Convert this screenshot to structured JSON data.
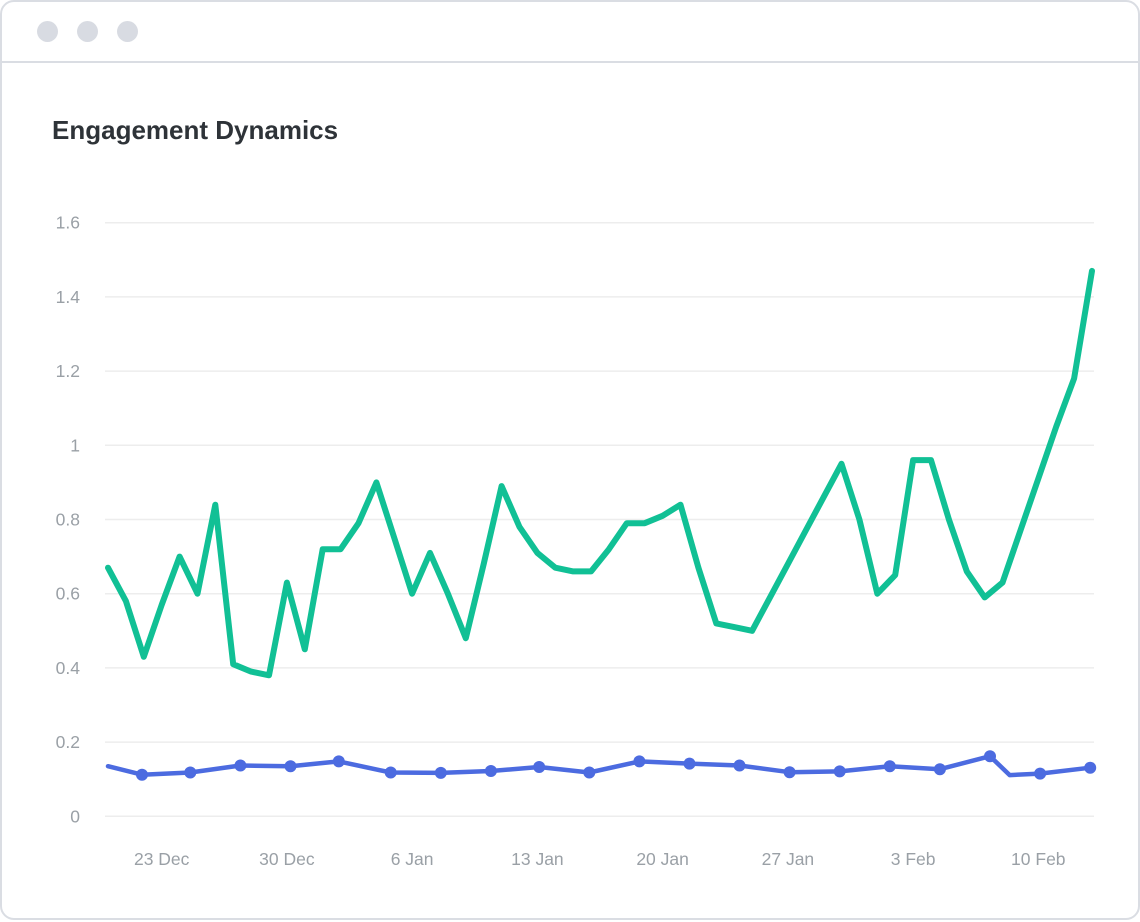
{
  "window": {
    "title": "Engagement Dynamics",
    "controls": [
      "window-dot",
      "window-dot",
      "window-dot"
    ]
  },
  "chart_data": {
    "type": "line",
    "title": "Engagement Dynamics",
    "grid": true,
    "x_unit": "day offset from first point (20 Dec), 1 unit = 1 day",
    "x_range_days": [
      0,
      55
    ],
    "x_ticks": [
      {
        "day": 3,
        "label": "23 Dec"
      },
      {
        "day": 10,
        "label": "30 Dec"
      },
      {
        "day": 17,
        "label": "6 Jan"
      },
      {
        "day": 24,
        "label": "13 Jan"
      },
      {
        "day": 31,
        "label": "20 Jan"
      },
      {
        "day": 38,
        "label": "27 Jan"
      },
      {
        "day": 45,
        "label": "3 Feb"
      },
      {
        "day": 52,
        "label": "10 Feb"
      }
    ],
    "y_range": [
      0,
      1.6
    ],
    "y_ticks": [
      {
        "value": 0,
        "label": "0"
      },
      {
        "value": 0.2,
        "label": "0.2"
      },
      {
        "value": 0.4,
        "label": "0.4"
      },
      {
        "value": 0.6,
        "label": "0.6"
      },
      {
        "value": 0.8,
        "label": "0.8"
      },
      {
        "value": 1,
        "label": "1"
      },
      {
        "value": 1.2,
        "label": "1.2"
      },
      {
        "value": 1.4,
        "label": "1.4"
      },
      {
        "value": 1.6,
        "label": "1.6"
      }
    ],
    "series": [
      {
        "id": "green-line",
        "color": "#11c095",
        "markers": false,
        "points": [
          [
            0,
            0.67
          ],
          [
            1,
            0.58
          ],
          [
            2,
            0.43
          ],
          [
            3,
            0.57
          ],
          [
            4,
            0.7
          ],
          [
            5,
            0.6
          ],
          [
            6,
            0.84
          ],
          [
            7,
            0.41
          ],
          [
            8,
            0.39
          ],
          [
            9,
            0.38
          ],
          [
            10,
            0.63
          ],
          [
            11,
            0.45
          ],
          [
            12,
            0.72
          ],
          [
            13,
            0.72
          ],
          [
            14,
            0.79
          ],
          [
            15,
            0.9
          ],
          [
            16,
            0.75
          ],
          [
            17,
            0.6
          ],
          [
            18,
            0.71
          ],
          [
            19,
            0.6
          ],
          [
            20,
            0.48
          ],
          [
            21,
            0.68
          ],
          [
            22,
            0.89
          ],
          [
            23,
            0.78
          ],
          [
            24,
            0.71
          ],
          [
            25,
            0.67
          ],
          [
            26,
            0.66
          ],
          [
            27,
            0.66
          ],
          [
            28,
            0.72
          ],
          [
            29,
            0.79
          ],
          [
            30,
            0.79
          ],
          [
            31,
            0.81
          ],
          [
            32,
            0.84
          ],
          [
            33,
            0.67
          ],
          [
            34,
            0.52
          ],
          [
            35,
            0.51
          ],
          [
            36,
            0.5
          ],
          [
            37,
            0.59
          ],
          [
            38,
            0.68
          ],
          [
            39,
            0.77
          ],
          [
            40,
            0.86
          ],
          [
            41,
            0.95
          ],
          [
            42,
            0.8
          ],
          [
            43,
            0.6
          ],
          [
            44,
            0.65
          ],
          [
            45,
            0.96
          ],
          [
            46,
            0.96
          ],
          [
            47,
            0.8
          ],
          [
            48,
            0.66
          ],
          [
            49,
            0.59
          ],
          [
            50,
            0.63
          ],
          [
            51,
            0.77
          ],
          [
            52,
            0.91
          ],
          [
            53,
            1.05
          ],
          [
            54,
            1.18
          ],
          [
            55,
            1.47
          ]
        ]
      },
      {
        "id": "blue-line",
        "color": "#4c6be0",
        "markers": true,
        "points": [
          [
            0,
            0.135,
            0
          ],
          [
            1.9,
            0.112,
            1
          ],
          [
            4.6,
            0.118,
            1
          ],
          [
            7.4,
            0.137,
            1
          ],
          [
            10.2,
            0.135,
            1
          ],
          [
            12.9,
            0.148,
            1
          ],
          [
            15.8,
            0.118,
            1
          ],
          [
            18.6,
            0.117,
            1
          ],
          [
            21.4,
            0.122,
            1
          ],
          [
            24.1,
            0.133,
            1
          ],
          [
            26.9,
            0.118,
            1
          ],
          [
            29.7,
            0.148,
            1
          ],
          [
            32.5,
            0.142,
            1
          ],
          [
            35.3,
            0.137,
            1
          ],
          [
            38.1,
            0.119,
            1
          ],
          [
            40.9,
            0.121,
            1
          ],
          [
            43.7,
            0.135,
            1
          ],
          [
            46.5,
            0.127,
            1
          ],
          [
            49.3,
            0.162,
            1
          ],
          [
            50.4,
            0.111,
            0
          ],
          [
            52.1,
            0.115,
            1
          ],
          [
            54.9,
            0.131,
            1
          ]
        ]
      }
    ],
    "colors": {
      "grid": "#ededed",
      "tick_text": "#9aa0a6",
      "title_text": "#2e3338",
      "chrome_border": "#dadde3",
      "window_dots": "#d8dbe2"
    }
  }
}
